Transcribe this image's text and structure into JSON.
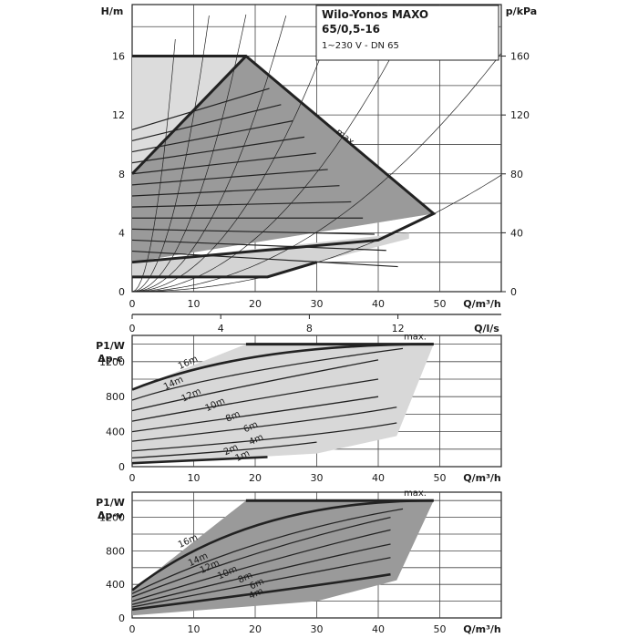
{
  "chart_data": [
    {
      "type": "area",
      "panel": "head",
      "title_line1": "Wilo-Yonos MAXO",
      "title_line2": "65/0,5-16",
      "subtitle": "1~230 V - DN 65",
      "ylabel": "H/m",
      "y2label": "p/kPa",
      "xlabel": "Q/m³/h",
      "x2label": "Q/l/s",
      "xlim": [
        0,
        60
      ],
      "ylim": [
        0,
        19.5
      ],
      "x_ticks": [
        "0",
        "10",
        "20",
        "30",
        "40",
        "50"
      ],
      "y_ticks": [
        "0",
        "4",
        "8",
        "12",
        "16"
      ],
      "y2_ticks": [
        "0",
        "40",
        "80",
        "120",
        "160"
      ],
      "x2_ticks": [
        "0",
        "4",
        "8",
        "12"
      ],
      "max_label": "max.",
      "envelope_max": {
        "x": [
          0,
          18.5,
          49,
          0
        ],
        "y": [
          16,
          16,
          5.3,
          2
        ]
      },
      "variable_pressure_region": {
        "x": [
          0,
          18.5,
          49,
          0
        ],
        "y": [
          8,
          16,
          5.3,
          2
        ]
      },
      "lower_region": {
        "x": [
          0,
          30,
          45,
          0
        ],
        "y": [
          2,
          2,
          4,
          4
        ]
      },
      "min_curve": {
        "x": [
          0,
          22,
          30
        ],
        "y": [
          1,
          1,
          2
        ]
      },
      "grid": true
    },
    {
      "type": "area",
      "panel": "power_dp_c",
      "ylabel_line1": "P1/W",
      "ylabel_line2": "Δp-c",
      "xlabel": "Q/m³/h",
      "xlim": [
        0,
        60
      ],
      "ylim": [
        0,
        1500
      ],
      "x_ticks": [
        "0",
        "10",
        "20",
        "30",
        "40",
        "50"
      ],
      "y_ticks": [
        "0",
        "400",
        "800",
        "1200"
      ],
      "max_label": "max.",
      "curves": [
        {
          "name": "16m",
          "x": [
            0,
            18.5,
            49
          ],
          "y": [
            880,
            1400,
            1400
          ]
        },
        {
          "name": "14m",
          "x": [
            0,
            12,
            44
          ],
          "y": [
            760,
            1050,
            1350
          ]
        },
        {
          "name": "12m",
          "x": [
            0,
            16,
            40
          ],
          "y": [
            640,
            900,
            1220
          ]
        },
        {
          "name": "10m",
          "x": [
            0,
            22,
            40
          ],
          "y": [
            520,
            800,
            1000
          ]
        },
        {
          "name": "8m",
          "x": [
            0,
            26,
            40
          ],
          "y": [
            400,
            650,
            800
          ]
        },
        {
          "name": "6m",
          "x": [
            0,
            30,
            43
          ],
          "y": [
            290,
            520,
            680
          ]
        },
        {
          "name": "4m",
          "x": [
            0,
            30,
            43
          ],
          "y": [
            180,
            340,
            500
          ]
        },
        {
          "name": "2m",
          "x": [
            0,
            20,
            30
          ],
          "y": [
            100,
            190,
            280
          ]
        },
        {
          "name": "1m",
          "x": [
            0,
            22
          ],
          "y": [
            40,
            110
          ]
        }
      ],
      "grid": true
    },
    {
      "type": "area",
      "panel": "power_dp_v",
      "ylabel_line1": "P1/W",
      "ylabel_line2": "Δp-v",
      "xlabel": "Q/m³/h",
      "xlim": [
        0,
        60
      ],
      "ylim": [
        0,
        1500
      ],
      "x_ticks": [
        "0",
        "10",
        "20",
        "30",
        "40",
        "50"
      ],
      "y_ticks": [
        "0",
        "400",
        "800",
        "1200"
      ],
      "max_label": "max.",
      "curves": [
        {
          "name": "16m",
          "x": [
            0,
            18.5,
            49
          ],
          "y": [
            330,
            1400,
            1400
          ]
        },
        {
          "name": "14m",
          "x": [
            0,
            20,
            44
          ],
          "y": [
            290,
            1000,
            1300
          ]
        },
        {
          "name": "12m",
          "x": [
            0,
            22,
            42
          ],
          "y": [
            250,
            870,
            1200
          ]
        },
        {
          "name": "10m",
          "x": [
            0,
            26,
            42
          ],
          "y": [
            200,
            780,
            1050
          ]
        },
        {
          "name": "8m",
          "x": [
            0,
            30,
            42
          ],
          "y": [
            160,
            700,
            880
          ]
        },
        {
          "name": "6m",
          "x": [
            0,
            32,
            42
          ],
          "y": [
            130,
            580,
            720
          ]
        },
        {
          "name": "4m",
          "x": [
            0,
            30,
            42
          ],
          "y": [
            100,
            380,
            520
          ]
        }
      ],
      "grid": true
    }
  ]
}
